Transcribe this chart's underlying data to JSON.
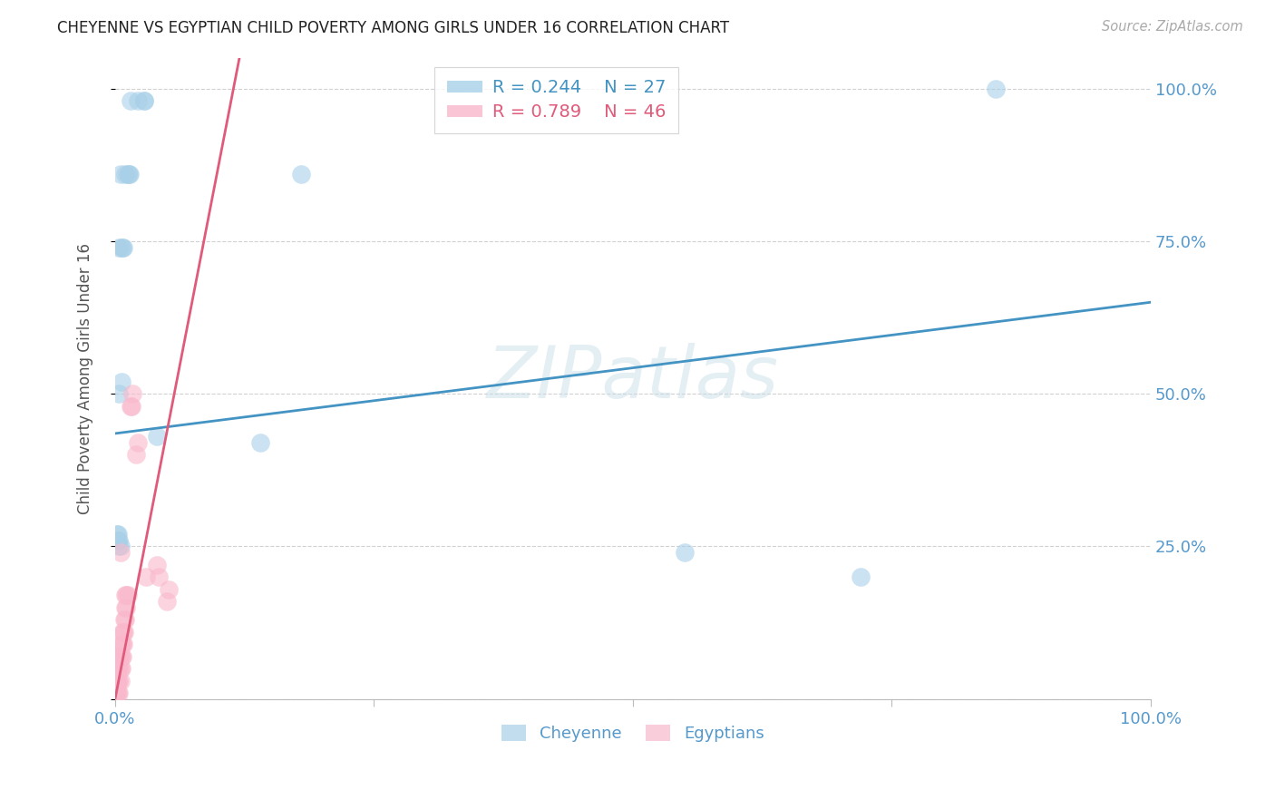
{
  "title": "CHEYENNE VS EGYPTIAN CHILD POVERTY AMONG GIRLS UNDER 16 CORRELATION CHART",
  "source": "Source: ZipAtlas.com",
  "ylabel": "Child Poverty Among Girls Under 16",
  "watermark": "ZIPatlas",
  "cheyenne_label": "Cheyenne",
  "egyptian_label": "Egyptians",
  "cheyenne_r": "R = 0.244",
  "cheyenne_n": "N = 27",
  "egyptian_r": "R = 0.789",
  "egyptian_n": "N = 46",
  "cheyenne_color": "#a8d0e8",
  "egyptian_color": "#f9b8cb",
  "cheyenne_line_color": "#4393c3",
  "egyptian_line_color": "#e05a7a",
  "background_color": "#ffffff",
  "grid_color": "#cccccc",
  "axis_label_color": "#5599cc",
  "title_color": "#222222",
  "cheyenne_x": [
    0.015,
    0.022,
    0.028,
    0.028,
    0.005,
    0.01,
    0.012,
    0.013,
    0.014,
    0.004,
    0.006,
    0.007,
    0.008,
    0.004,
    0.006,
    0.002,
    0.003,
    0.003,
    0.004,
    0.004,
    0.005,
    0.04,
    0.18,
    0.55,
    0.72,
    0.85,
    0.14
  ],
  "cheyenne_y": [
    0.98,
    0.98,
    0.98,
    0.98,
    0.86,
    0.86,
    0.86,
    0.86,
    0.86,
    0.74,
    0.74,
    0.74,
    0.74,
    0.5,
    0.52,
    0.27,
    0.27,
    0.26,
    0.26,
    0.25,
    0.25,
    0.43,
    0.86,
    0.24,
    0.2,
    1.0,
    0.42
  ],
  "egyptian_x": [
    0.001,
    0.001,
    0.001,
    0.002,
    0.002,
    0.002,
    0.002,
    0.003,
    0.003,
    0.003,
    0.003,
    0.004,
    0.004,
    0.004,
    0.004,
    0.005,
    0.005,
    0.005,
    0.005,
    0.006,
    0.006,
    0.006,
    0.007,
    0.007,
    0.007,
    0.008,
    0.008,
    0.009,
    0.009,
    0.01,
    0.01,
    0.01,
    0.011,
    0.011,
    0.012,
    0.015,
    0.016,
    0.017,
    0.02,
    0.022,
    0.03,
    0.04,
    0.042,
    0.05,
    0.052,
    0.001
  ],
  "egyptian_y": [
    0.01,
    0.03,
    0.05,
    0.01,
    0.03,
    0.05,
    0.07,
    0.01,
    0.03,
    0.05,
    0.07,
    0.01,
    0.03,
    0.05,
    0.07,
    0.03,
    0.05,
    0.07,
    0.24,
    0.05,
    0.07,
    0.09,
    0.07,
    0.09,
    0.11,
    0.09,
    0.11,
    0.11,
    0.13,
    0.13,
    0.15,
    0.17,
    0.15,
    0.17,
    0.17,
    0.48,
    0.48,
    0.5,
    0.4,
    0.42,
    0.2,
    0.22,
    0.2,
    0.16,
    0.18,
    0.07
  ],
  "cheyenne_trendline": [
    0.0,
    1.0,
    0.435,
    0.65
  ],
  "egyptian_trendline_x": [
    0.0,
    0.12
  ],
  "egyptian_trendline_y": [
    0.0,
    1.05
  ],
  "xlim": [
    0.0,
    1.0
  ],
  "ylim": [
    0.0,
    1.05
  ],
  "xtick_positions": [
    0.0,
    0.25,
    0.5,
    0.75,
    1.0
  ],
  "ytick_positions": [
    0.0,
    0.25,
    0.5,
    0.75,
    1.0
  ],
  "ytick_labels_right": [
    "",
    "25.0%",
    "50.0%",
    "75.0%",
    "100.0%"
  ]
}
